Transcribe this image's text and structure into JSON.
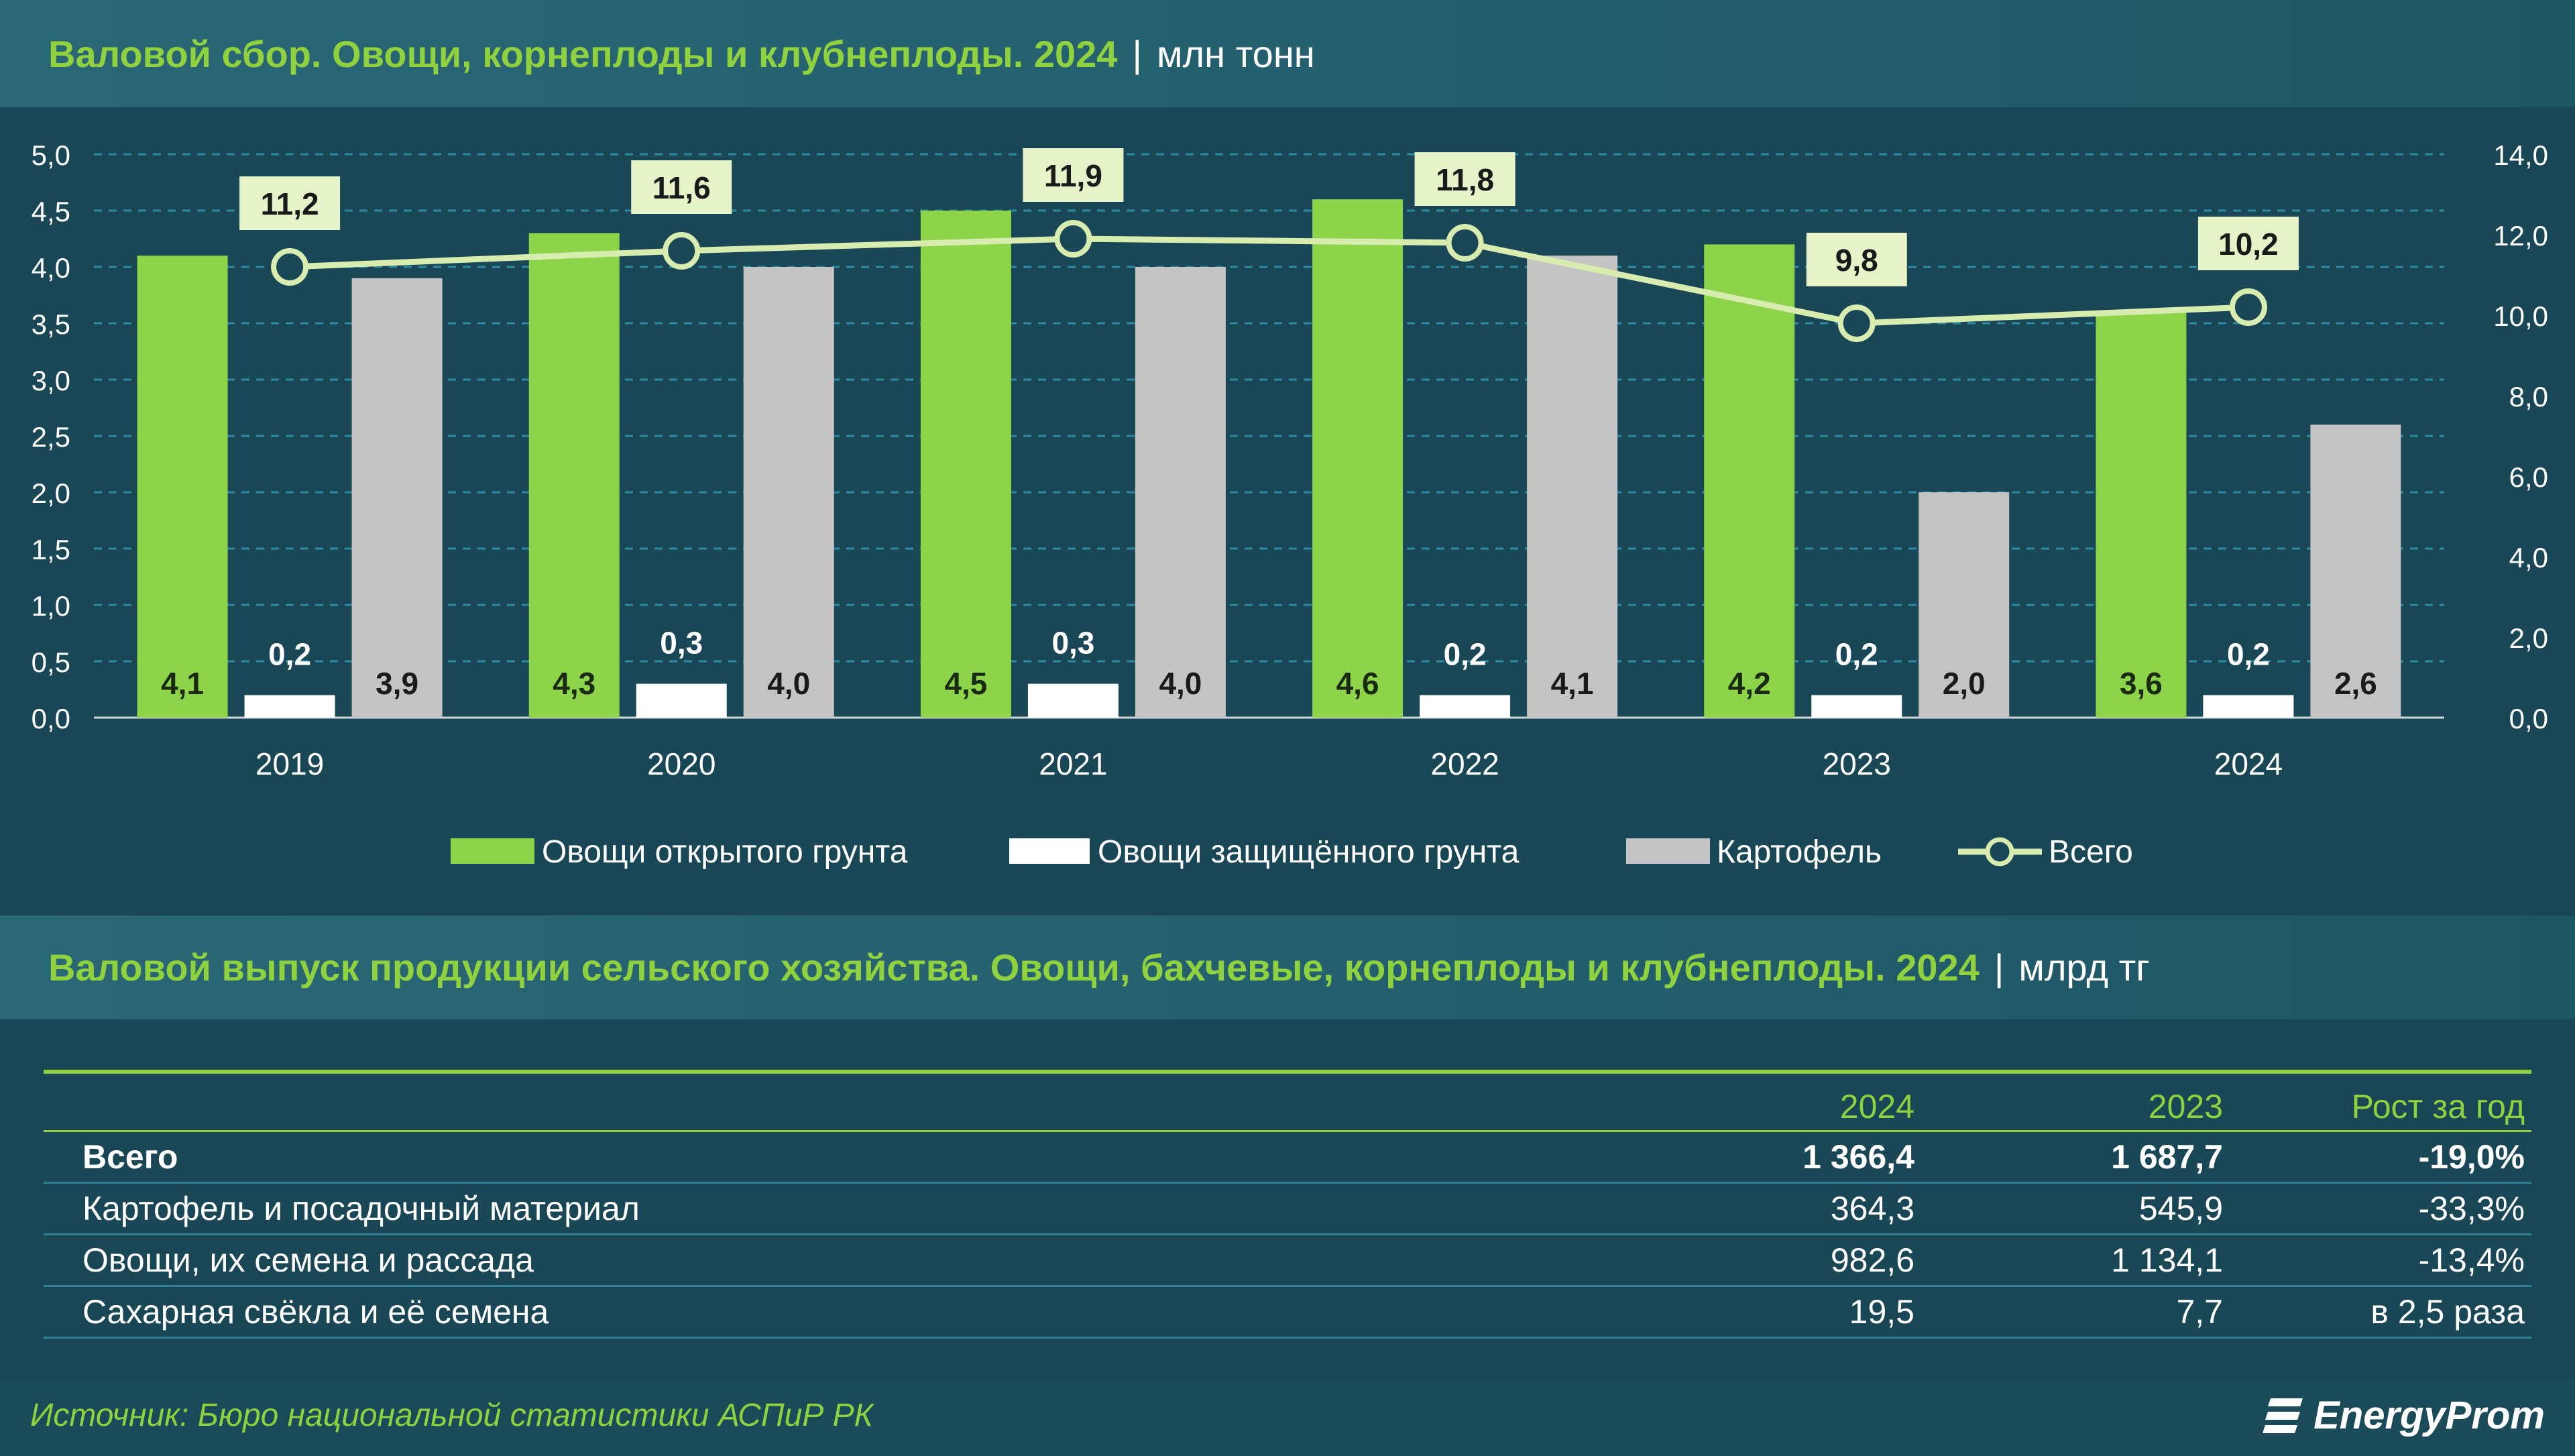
{
  "chart_header": {
    "title": "Валовой сбор. Овощи, корнеплоды и клубнеплоды. 2024",
    "unit": "млн тонн"
  },
  "chart_data": {
    "type": "bar",
    "title": "Валовой сбор. Овощи, корнеплоды и клубнеплоды. 2024",
    "unit": "млн тонн",
    "categories": [
      "2019",
      "2020",
      "2021",
      "2022",
      "2023",
      "2024"
    ],
    "series": [
      {
        "name": "Овощи открытого грунта",
        "type": "bar",
        "axis": "left",
        "color": "#8dd44a",
        "values": [
          4.1,
          4.3,
          4.5,
          4.6,
          4.2,
          3.6
        ],
        "labels": [
          "4,1",
          "4,3",
          "4,5",
          "4,6",
          "4,2",
          "3,6"
        ]
      },
      {
        "name": "Овощи защищённого грунта",
        "type": "bar",
        "axis": "left",
        "color": "#ffffff",
        "values": [
          0.2,
          0.3,
          0.3,
          0.2,
          0.2,
          0.2
        ],
        "labels": [
          "0,2",
          "0,3",
          "0,3",
          "0,2",
          "0,2",
          "0,2"
        ]
      },
      {
        "name": "Картофель",
        "type": "bar",
        "axis": "left",
        "color": "#c4c4c4",
        "values": [
          3.9,
          4.0,
          4.0,
          4.1,
          2.0,
          2.6
        ],
        "labels": [
          "3,9",
          "4,0",
          "4,0",
          "4,1",
          "2,0",
          "2,6"
        ]
      },
      {
        "name": "Всего",
        "type": "line",
        "axis": "right",
        "color": "#d8ecb0",
        "values": [
          11.2,
          11.6,
          11.9,
          11.8,
          9.8,
          10.2
        ],
        "labels": [
          "11,2",
          "11,6",
          "11,9",
          "11,8",
          "9,8",
          "10,2"
        ]
      }
    ],
    "y_left": {
      "min": 0,
      "max": 5,
      "step": 0.5,
      "ticks": [
        "0,0",
        "0,5",
        "1,0",
        "1,5",
        "2,0",
        "2,5",
        "3,0",
        "3,5",
        "4,0",
        "4,5",
        "5,0"
      ]
    },
    "y_right": {
      "min": 0,
      "max": 14,
      "step": 2,
      "ticks": [
        "0,0",
        "2,0",
        "4,0",
        "6,0",
        "8,0",
        "10,0",
        "12,0",
        "14,0"
      ]
    },
    "grid": true,
    "legend_position": "bottom"
  },
  "table_header": {
    "title": "Валовой выпуск продукции сельского хозяйства. Овощи, бахчевые, корнеплоды и клубнеплоды. 2024",
    "unit": "млрд тг"
  },
  "table": {
    "columns": [
      "",
      "2024",
      "2023",
      "Рост за год"
    ],
    "rows": [
      {
        "label": "Всего",
        "v2024": "1 366,4",
        "v2023": "1 687,7",
        "growth": "-19,0%"
      },
      {
        "label": "Картофель и посадочный материал",
        "v2024": "364,3",
        "v2023": "545,9",
        "growth": "-33,3%"
      },
      {
        "label": "Овощи, их семена и рассада",
        "v2024": "982,6",
        "v2023": "1 134,1",
        "growth": "-13,4%"
      },
      {
        "label": "Сахарная свёкла и её семена",
        "v2024": "19,5",
        "v2023": "7,7",
        "growth": "в 2,5 раза"
      }
    ]
  },
  "footer": {
    "source": "Источник: Бюро национальной статистики АСПиР РК",
    "brand": "EnergyProm"
  },
  "colors": {
    "accent": "#8fd13f",
    "background": "#1a4756",
    "header": "#24606e"
  }
}
